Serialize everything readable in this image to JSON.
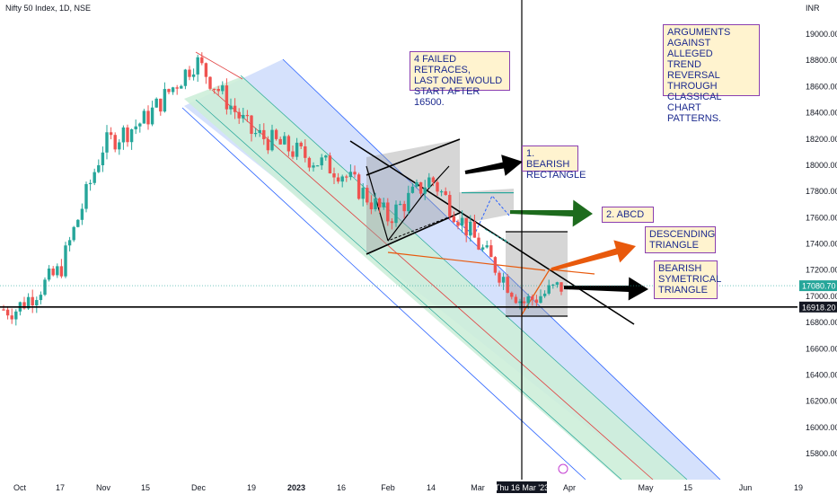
{
  "header": {
    "symbol": "Nifty 50 Index, 1D, NSE"
  },
  "currency_label": "INR",
  "colors": {
    "up": "#26a69a",
    "down": "#ef5350",
    "band_outer": "#c7d7fb",
    "band_inner": "#cdeed9",
    "crosshair": "#000000"
  },
  "notes": {
    "failed_retraces": "4 FAILED RETRACES,\nLAST ONE WOULD\nSTART AFTER 16500.",
    "arguments": "ARGUMENTS\nAGAINST ALLEGED\nTREND REVERSAL\nTHROUGH\nCLASSICAL CHART\nPATTERNS.",
    "bearish_rectangle": "1. BEARISH\nRECTANGLE",
    "abcd": "2. ABCD",
    "descending_triangle": "DESCENDING\nTRIANGLE",
    "bearish_symetrical_triangle": "BEARISH\nSYMETRICAL\nTRIANGLE"
  },
  "chart_data": {
    "type": "candlestick",
    "title": "Nifty 50 Index, 1D, NSE",
    "ylabel": "INR",
    "ylim": [
      15700,
      19150
    ],
    "y_ticks": [
      19000,
      18800,
      18600,
      18400,
      18200,
      18000,
      17800,
      17600,
      17400,
      17200,
      17000,
      16800,
      16600,
      16400,
      16200,
      16000,
      15800
    ],
    "x_ticks": [
      "Oct",
      "17",
      "Nov",
      "15",
      "Dec",
      "19",
      "2023",
      "16",
      "Feb",
      "14",
      "Mar",
      "Apr",
      "May",
      "15",
      "Jun",
      "19"
    ],
    "price_labels": {
      "last_price": "17080.70",
      "crosshair_price": "16918.20"
    },
    "crosshair_date_label": "Thu 16 Mar '23",
    "close_path": [
      {
        "date": "Oct",
        "close": 16900
      },
      {
        "date": "17",
        "close": 17200
      },
      {
        "date": "Nov",
        "close": 18150
      },
      {
        "date": "15",
        "close": 18350
      },
      {
        "date": "Dec",
        "close": 18800
      },
      {
        "date": "19",
        "close": 18250
      },
      {
        "date": "2023",
        "close": 18100
      },
      {
        "date": "16",
        "close": 17950
      },
      {
        "date": "Feb",
        "close": 17600
      },
      {
        "date": "14",
        "close": 17900
      },
      {
        "date": "Mar",
        "close": 17400
      },
      {
        "date": "Thu 16 Mar '23",
        "close": 16950
      },
      {
        "date": "Apr",
        "close": 17080
      }
    ],
    "annotations": [
      "descending regression channel",
      "horizontal support line at 16918.20",
      "vertical crosshair at Thu 16 Mar '23"
    ]
  }
}
